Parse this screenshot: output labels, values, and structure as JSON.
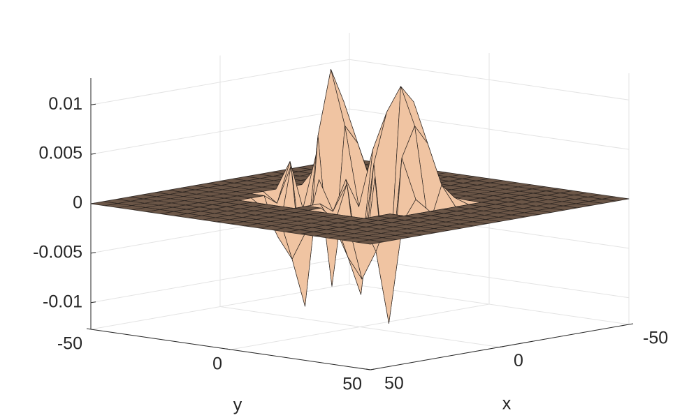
{
  "chart_data": {
    "type": "surface",
    "xlabel": "x",
    "ylabel": "y",
    "x": [
      -50,
      -45,
      -40,
      -35,
      -30,
      -25,
      -20,
      -15,
      -10,
      -5,
      0,
      5,
      10,
      15,
      20,
      25,
      30,
      35,
      40,
      45,
      50
    ],
    "y": [
      -50,
      -45,
      -40,
      -35,
      -30,
      -25,
      -20,
      -15,
      -10,
      -5,
      0,
      5,
      10,
      15,
      20,
      25,
      30,
      35,
      40,
      45,
      50
    ],
    "z": [
      [
        0,
        0,
        0,
        0,
        0,
        0,
        0,
        0,
        0,
        0,
        0,
        0,
        0,
        0,
        0,
        0,
        0,
        0,
        0,
        0,
        0
      ],
      [
        0,
        0,
        0,
        0,
        0,
        0,
        0,
        0,
        0,
        0,
        0,
        0,
        0,
        0,
        0,
        0,
        0,
        0,
        0,
        0,
        0
      ],
      [
        0,
        0,
        0,
        0,
        0,
        0,
        0,
        0,
        0,
        0,
        0,
        0,
        0,
        0,
        0,
        0,
        0,
        0,
        0,
        0,
        0
      ],
      [
        0,
        0,
        0,
        0,
        0,
        0,
        0,
        0,
        0,
        0,
        0,
        0,
        0,
        0,
        0,
        0,
        0,
        0,
        0,
        0,
        0
      ],
      [
        0,
        0,
        0,
        0,
        0,
        0,
        0,
        0,
        0,
        0,
        0,
        0,
        0,
        0,
        0,
        0,
        0,
        0,
        0,
        0,
        0
      ],
      [
        0,
        0,
        0,
        0,
        0,
        0,
        0,
        0,
        0,
        0,
        0,
        0,
        0,
        0,
        0,
        0,
        0,
        0,
        0,
        0,
        0
      ],
      [
        0,
        0,
        0,
        0,
        0,
        0,
        0,
        0,
        0,
        0,
        0,
        0,
        0,
        0,
        0,
        0,
        0,
        0,
        0,
        0,
        0
      ],
      [
        0,
        0,
        0,
        0,
        0,
        0.0005,
        0.001,
        0.0015,
        0.001,
        0.0004,
        0.001,
        0.0015,
        0.002,
        0.0012,
        0.0005,
        0,
        0,
        0,
        0,
        0,
        0
      ],
      [
        0,
        0,
        0,
        0,
        0,
        0.002,
        0.006,
        0.009,
        0.005,
        0.001,
        0.004,
        0.008,
        0.01,
        0.006,
        0.002,
        0,
        0,
        0,
        0,
        0,
        0
      ],
      [
        0,
        0,
        0,
        0,
        0,
        -0.002,
        0.004,
        0.0125,
        0.007,
        -0.001,
        0.005,
        0.009,
        0.0118,
        0.008,
        -0.002,
        0,
        0,
        0,
        0,
        0,
        0
      ],
      [
        0,
        0,
        0,
        0,
        0,
        0.003,
        -0.008,
        0.006,
        -0.009,
        0.002,
        -0.007,
        0.004,
        -0.01,
        0.005,
        0.001,
        0,
        0,
        0,
        0,
        0,
        0
      ],
      [
        0,
        0,
        0,
        0,
        0,
        -0.001,
        0.003,
        -0.011,
        0.002,
        -0.001,
        0.002,
        -0.009,
        0.003,
        -0.0115,
        -0.001,
        0,
        0,
        0,
        0,
        0,
        0
      ],
      [
        0,
        0,
        0,
        0,
        0,
        0,
        -0.004,
        -0.006,
        -0.003,
        0,
        -0.002,
        -0.005,
        -0.007,
        -0.004,
        0,
        0,
        0,
        0,
        0,
        0,
        0
      ],
      [
        0,
        0,
        0,
        0,
        0,
        0,
        -0.001,
        -0.0015,
        -0.001,
        0,
        0,
        -0.001,
        -0.0015,
        -0.001,
        0,
        0,
        0,
        0,
        0,
        0,
        0
      ],
      [
        0,
        0,
        0,
        0,
        0,
        0,
        0,
        0,
        0,
        0,
        0,
        0,
        0,
        0,
        0,
        0,
        0,
        0,
        0,
        0,
        0
      ],
      [
        0,
        0,
        0,
        0,
        0,
        0,
        0,
        0,
        0,
        0,
        0,
        0,
        0,
        0,
        0,
        0,
        0,
        0,
        0,
        0,
        0
      ],
      [
        0,
        0,
        0,
        0,
        0,
        0,
        0,
        0,
        0,
        0,
        0,
        0,
        0,
        0,
        0,
        0,
        0,
        0,
        0,
        0,
        0
      ],
      [
        0,
        0,
        0,
        0,
        0,
        0,
        0,
        0,
        0,
        0,
        0,
        0,
        0,
        0,
        0,
        0,
        0,
        0,
        0,
        0,
        0
      ],
      [
        0,
        0,
        0,
        0,
        0,
        0,
        0,
        0,
        0,
        0,
        0,
        0,
        0,
        0,
        0,
        0,
        0,
        0,
        0,
        0,
        0
      ],
      [
        0,
        0,
        0,
        0,
        0,
        0,
        0,
        0,
        0,
        0,
        0,
        0,
        0,
        0,
        0,
        0,
        0,
        0,
        0,
        0,
        0
      ],
      [
        0,
        0,
        0,
        0,
        0,
        0,
        0,
        0,
        0,
        0,
        0,
        0,
        0,
        0,
        0,
        0,
        0,
        0,
        0,
        0,
        0
      ]
    ],
    "xlim": [
      -50,
      50
    ],
    "ylim": [
      -50,
      50
    ],
    "zlim": [
      -0.0127,
      0.0127
    ],
    "xticks": [
      -50,
      0,
      50
    ],
    "yticks": [
      -50,
      0,
      50
    ],
    "zticks": [
      -0.01,
      -0.005,
      0,
      0.005,
      0.01
    ],
    "grid": true,
    "face_color": "#f0c4a2",
    "flat_color": "#6b5647",
    "edge_color": "#2b2420"
  }
}
